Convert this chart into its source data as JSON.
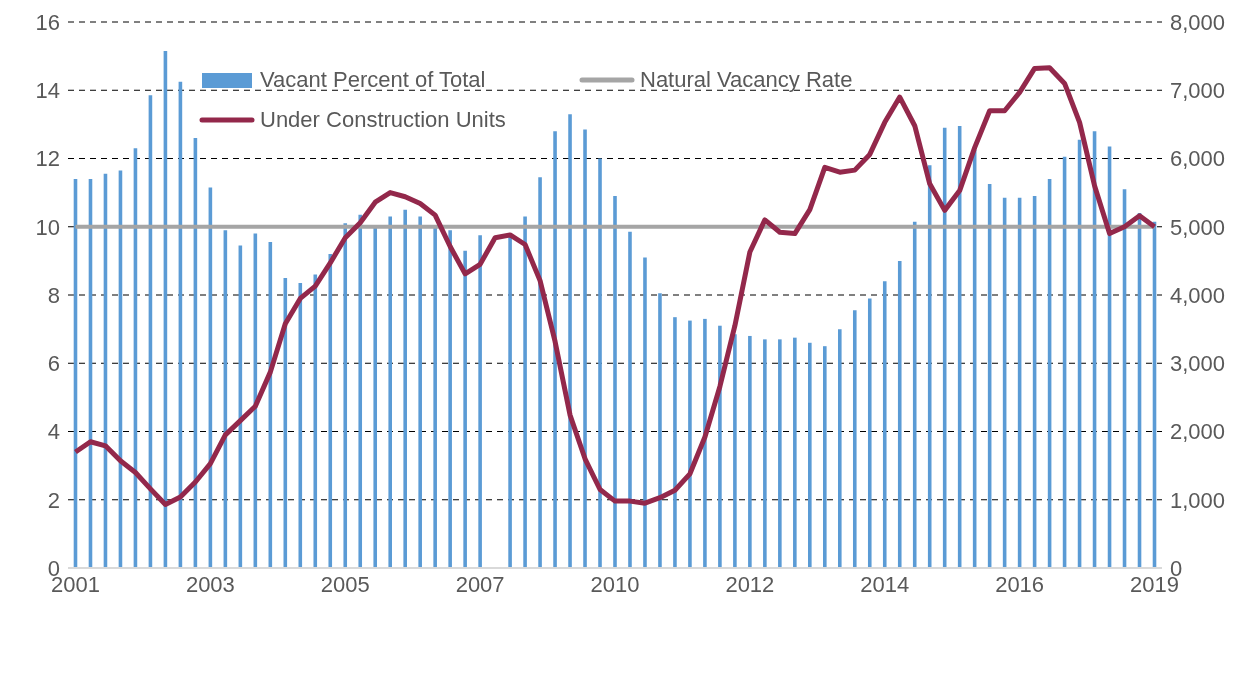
{
  "chart_data": {
    "type": "bar",
    "categories": [
      "2001",
      null,
      null,
      null,
      null,
      null,
      null,
      null,
      null,
      "2003",
      null,
      null,
      null,
      null,
      null,
      null,
      null,
      null,
      "2005",
      null,
      null,
      null,
      null,
      null,
      null,
      null,
      null,
      "2007",
      null,
      null,
      null,
      null,
      null,
      null,
      null,
      null,
      "2010",
      null,
      null,
      null,
      null,
      null,
      null,
      null,
      null,
      "2012",
      null,
      null,
      null,
      null,
      null,
      null,
      null,
      null,
      "2014",
      null,
      null,
      null,
      null,
      null,
      null,
      null,
      null,
      "2016",
      null,
      null,
      null,
      null,
      null,
      null,
      null,
      null,
      "2019"
    ],
    "series": [
      {
        "name": "Vacant Percent of Total",
        "color": "#5b9bd5",
        "values": [
          11.4,
          11.4,
          11.55,
          11.65,
          12.3,
          13.85,
          15.15,
          14.25,
          12.6,
          11.15,
          9.9,
          9.45,
          9.8,
          9.55,
          8.5,
          8.35,
          8.6,
          9.2,
          10.1,
          10.35,
          10.0,
          10.3,
          10.5,
          10.3,
          10.0,
          9.9,
          9.3,
          9.75,
          null,
          9.7,
          10.3,
          11.45,
          12.8,
          13.3,
          12.85,
          12.0,
          10.9,
          9.85,
          9.1,
          8.05,
          7.35,
          7.25,
          7.3,
          7.1,
          6.85,
          6.8,
          6.7,
          6.7,
          6.75,
          6.6,
          6.5,
          7.0,
          7.55,
          7.9,
          8.4,
          9.0,
          10.15,
          11.8,
          12.9,
          12.95,
          12.25,
          11.25,
          10.85,
          10.85,
          10.9,
          11.4,
          12.05,
          12.55,
          12.8,
          12.35,
          11.1,
          10.4,
          10.15
        ]
      },
      {
        "name": "Natural Vacancy Rate",
        "type": "line",
        "color": "#a5a5a5",
        "values": [
          10,
          10,
          10,
          10,
          10,
          10,
          10,
          10,
          10,
          10,
          10,
          10,
          10,
          10,
          10,
          10,
          10,
          10,
          10,
          10,
          10,
          10,
          10,
          10,
          10,
          10,
          10,
          10,
          10,
          10,
          10,
          10,
          10,
          10,
          10,
          10,
          10,
          10,
          10,
          10,
          10,
          10,
          10,
          10,
          10,
          10,
          10,
          10,
          10,
          10,
          10,
          10,
          10,
          10,
          10,
          10,
          10,
          10,
          10,
          10,
          10,
          10,
          10,
          10,
          10,
          10,
          10,
          10,
          10,
          10,
          10,
          10,
          10
        ]
      },
      {
        "name": "Under Construction Units",
        "type": "line",
        "axis": "y2",
        "color": "#93284b",
        "values": [
          1700,
          1850,
          1790,
          1570,
          1400,
          1160,
          930,
          1040,
          1260,
          1530,
          1950,
          2160,
          2370,
          2870,
          3580,
          3950,
          4130,
          4470,
          4840,
          5060,
          5360,
          5500,
          5440,
          5340,
          5170,
          4710,
          4310,
          4450,
          4840,
          4880,
          4740,
          4210,
          3320,
          2240,
          1600,
          1150,
          980,
          980,
          950,
          1030,
          1140,
          1380,
          1920,
          2660,
          3550,
          4630,
          5100,
          4920,
          4900,
          5250,
          5870,
          5800,
          5830,
          6060,
          6530,
          6900,
          6480,
          5630,
          5240,
          5530,
          6160,
          6700,
          6700,
          6970,
          7320,
          7330,
          7100,
          6530,
          5600,
          4900,
          5000,
          5160,
          5000
        ]
      }
    ],
    "ylim": [
      0,
      16
    ],
    "yticks": [
      0,
      2,
      4,
      6,
      8,
      10,
      12,
      14,
      16
    ],
    "y2lim": [
      0,
      8000
    ],
    "y2ticks": [
      0,
      {
        "value": 1000,
        "label": "1,000"
      },
      {
        "value": 2000,
        "label": "2,000"
      },
      {
        "value": 3000,
        "label": "3,000"
      },
      {
        "value": 4000,
        "label": "4,000"
      },
      {
        "value": 5000,
        "label": "5,000"
      },
      {
        "value": 6000,
        "label": "6,000"
      },
      {
        "value": 7000,
        "label": "7,000"
      },
      {
        "value": 8000,
        "label": "8,000"
      }
    ],
    "grid": "y",
    "legend": "top",
    "marker": "none",
    "line_style": "solid"
  }
}
